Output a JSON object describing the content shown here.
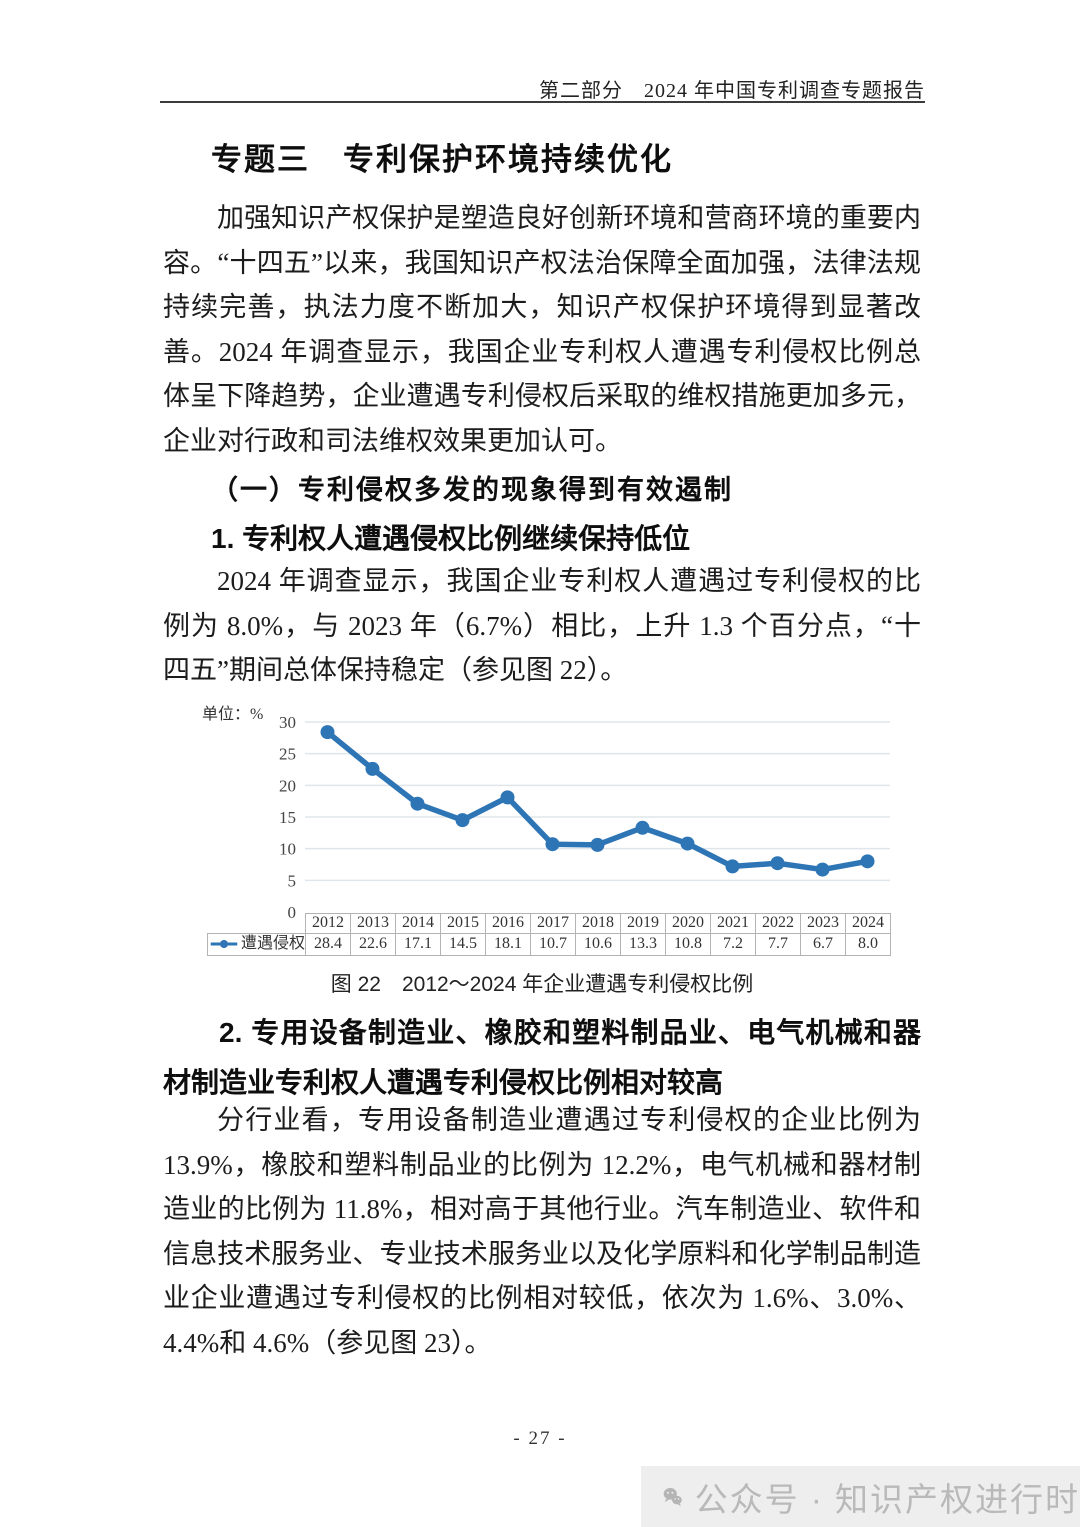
{
  "page": {
    "header": "第二部分　2024 年中国专利调查专题报告",
    "page_number": "- 27 -"
  },
  "content": {
    "title": "专题三　专利保护环境持续优化",
    "paragraph1": "加强知识产权保护是塑造良好创新环境和营商环境的重要内容。“十四五”以来，我国知识产权法治保障全面加强，法律法规持续完善，执法力度不断加大，知识产权保护环境得到显著改善。2024 年调查显示，我国企业专利权人遭遇专利侵权比例总体呈下降趋势，企业遭遇专利侵权后采取的维权措施更加多元，企业对行政和司法维权效果更加认可。",
    "section1_heading": "（一）专利侵权多发的现象得到有效遏制",
    "sub1_heading": "1. 专利权人遭遇侵权比例继续保持低位",
    "paragraph2": "2024 年调查显示，我国企业专利权人遭遇过专利侵权的比例为 8.0%，与 2023 年（6.7%）相比，上升 1.3 个百分点，“十四五”期间总体保持稳定（参见图 22）。",
    "figure_caption": "图 22　2012～2024 年企业遭遇专利侵权比例",
    "sub2_heading": "2. 专用设备制造业、橡胶和塑料制品业、电气机械和器材制造业专利权人遭遇专利侵权比例相对较高",
    "paragraph3": "分行业看，专用设备制造业遭遇过专利侵权的企业比例为 13.9%，橡胶和塑料制品业的比例为 12.2%，电气机械和器材制造业的比例为 11.8%，相对高于其他行业。汽车制造业、软件和信息技术服务业、专业技术服务业以及化学原料和化学制品制造业企业遭遇过专利侵权的比例相对较低，依次为 1.6%、3.0%、4.4%和 4.6%（参见图 23）。"
  },
  "chart_data": {
    "type": "line",
    "title": "图 22　2012～2024 年企业遭遇专利侵权比例",
    "unit_label": "单位：%",
    "categories": [
      "2012",
      "2013",
      "2014",
      "2015",
      "2016",
      "2017",
      "2018",
      "2019",
      "2020",
      "2021",
      "2022",
      "2023",
      "2024"
    ],
    "series": [
      {
        "name": "遭遇侵权",
        "values": [
          28.4,
          22.6,
          17.1,
          14.5,
          18.1,
          10.7,
          10.6,
          13.3,
          10.8,
          7.2,
          7.7,
          6.7,
          8.0
        ],
        "labels": [
          "28.4",
          "22.6",
          "17.1",
          "14.5",
          "18.1",
          "10.7",
          "10.6",
          "13.3",
          "10.8",
          "7.2",
          "7.7",
          "6.7",
          "8.0"
        ]
      }
    ],
    "yticks": [
      0,
      5,
      10,
      15,
      20,
      25,
      30
    ],
    "ylim": [
      0,
      30
    ],
    "grid": true,
    "line_color": "#2E75B6",
    "legend_position": "table-left"
  },
  "watermark": {
    "text": "公众号 · 知识产权进行时",
    "icon": "wechat-icon"
  }
}
